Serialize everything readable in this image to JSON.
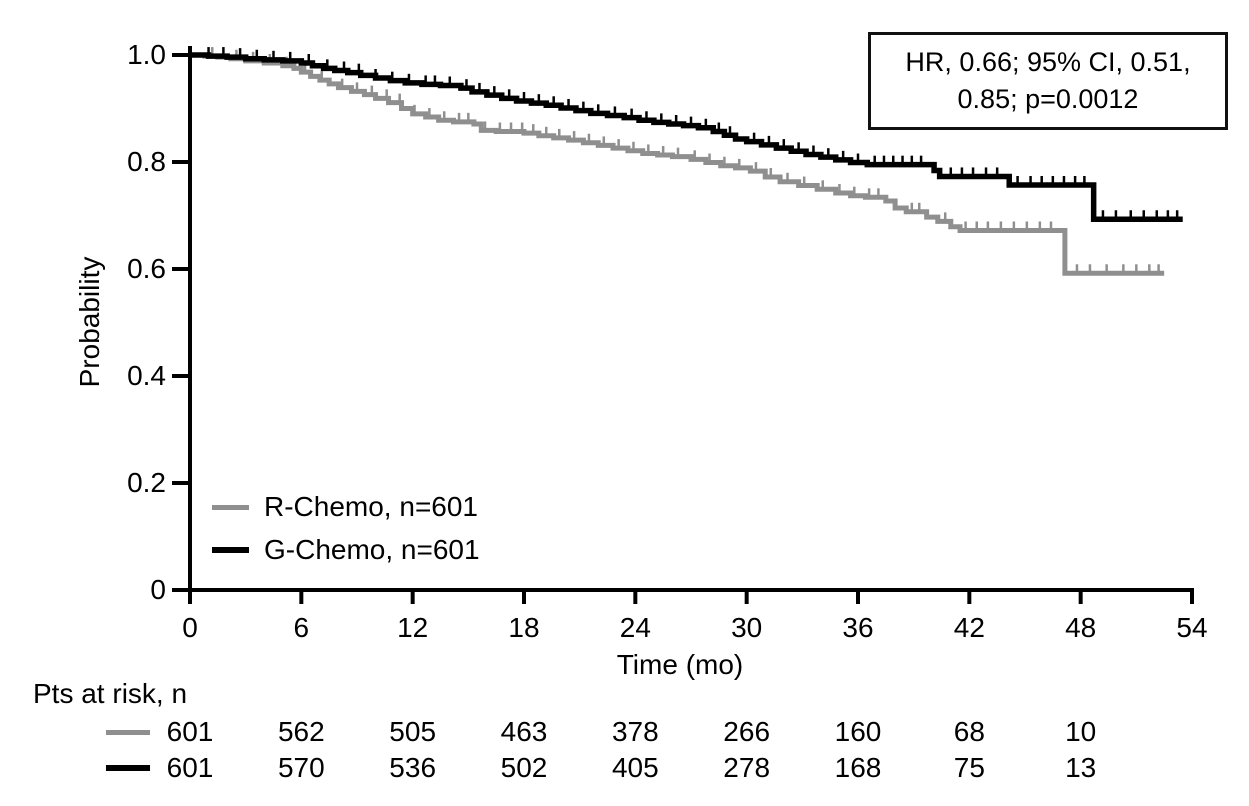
{
  "figure": {
    "background": "#ffffff",
    "text_color": "#000000"
  },
  "chart_data": {
    "type": "line",
    "subtype": "kaplan-meier-step",
    "title": "",
    "xlabel": "Time (mo)",
    "ylabel": "Probability",
    "xlim": [
      0,
      54
    ],
    "ylim": [
      0,
      1.0
    ],
    "x_ticks": [
      0,
      6,
      12,
      18,
      24,
      30,
      36,
      42,
      48,
      54
    ],
    "y_ticks": [
      0,
      0.2,
      0.4,
      0.6,
      0.8,
      1.0
    ],
    "y_tick_labels": [
      "0",
      "0.2",
      "0.4",
      "0.6",
      "0.8",
      "1.0"
    ],
    "grid": false,
    "legend_position": "inside-lower-left",
    "annotation": {
      "text": "HR, 0.66; 95% CI, 0.51, 0.85; p=0.0012"
    },
    "series": [
      {
        "name": "R-Chemo, n=601",
        "color": "#8f8f8f",
        "stroke_width": 5,
        "points": [
          [
            0,
            1.0
          ],
          [
            0.8,
            0.998
          ],
          [
            1.5,
            0.996
          ],
          [
            2.2,
            0.993
          ],
          [
            3,
            0.989
          ],
          [
            4,
            0.985
          ],
          [
            5,
            0.98
          ],
          [
            5.6,
            0.975
          ],
          [
            6,
            0.968
          ],
          [
            6.5,
            0.96
          ],
          [
            7,
            0.953
          ],
          [
            7.5,
            0.946
          ],
          [
            8,
            0.939
          ],
          [
            8.7,
            0.932
          ],
          [
            9.4,
            0.926
          ],
          [
            10,
            0.919
          ],
          [
            10.7,
            0.911
          ],
          [
            11.4,
            0.9
          ],
          [
            12,
            0.89
          ],
          [
            12.7,
            0.884
          ],
          [
            13.4,
            0.878
          ],
          [
            14.2,
            0.875
          ],
          [
            15.3,
            0.871
          ],
          [
            15.7,
            0.859
          ],
          [
            16.5,
            0.857
          ],
          [
            18,
            0.854
          ],
          [
            18.8,
            0.849
          ],
          [
            19.6,
            0.845
          ],
          [
            20.4,
            0.841
          ],
          [
            21.2,
            0.836
          ],
          [
            22,
            0.831
          ],
          [
            22.8,
            0.826
          ],
          [
            23.6,
            0.821
          ],
          [
            24.4,
            0.816
          ],
          [
            25.2,
            0.813
          ],
          [
            26,
            0.81
          ],
          [
            27,
            0.805
          ],
          [
            27.8,
            0.799
          ],
          [
            28.6,
            0.793
          ],
          [
            29.4,
            0.789
          ],
          [
            30.2,
            0.783
          ],
          [
            31,
            0.772
          ],
          [
            31.8,
            0.763
          ],
          [
            32.8,
            0.756
          ],
          [
            33.8,
            0.749
          ],
          [
            34.8,
            0.742
          ],
          [
            35.6,
            0.737
          ],
          [
            36.4,
            0.734
          ],
          [
            37.5,
            0.727
          ],
          [
            38,
            0.714
          ],
          [
            38.6,
            0.707
          ],
          [
            39.7,
            0.697
          ],
          [
            40.3,
            0.689
          ],
          [
            41,
            0.679
          ],
          [
            41.5,
            0.672
          ],
          [
            46.95,
            0.672
          ],
          [
            47.15,
            0.592
          ],
          [
            52.5,
            0.592
          ]
        ],
        "censor_times": [
          1.2,
          2.5,
          3.4,
          4.3,
          5.2,
          6.2,
          7.1,
          8.2,
          9,
          9.8,
          10.6,
          11.3,
          12.1,
          12.9,
          13.7,
          14.5,
          15,
          15.9,
          16.7,
          17.3,
          17.9,
          18.5,
          19.2,
          19.9,
          20.7,
          21.5,
          22.3,
          23.1,
          23.9,
          24.7,
          25.5,
          26.3,
          27.2,
          28,
          28.8,
          29.6,
          30.5,
          31.3,
          32.2,
          33.1,
          34.1,
          35,
          35.8,
          36.6,
          37.1,
          38.9,
          39.3,
          40.7,
          41.8,
          42.4,
          43,
          43.7,
          44.4,
          45.1,
          45.8,
          46.4,
          47.8,
          48.5,
          49.4,
          50.3,
          51,
          51.7,
          52.2
        ]
      },
      {
        "name": "G-Chemo, n=601",
        "color": "#000000",
        "stroke_width": 5.5,
        "points": [
          [
            0,
            1.0
          ],
          [
            1,
            0.998
          ],
          [
            2,
            0.996
          ],
          [
            3,
            0.993
          ],
          [
            4,
            0.991
          ],
          [
            5,
            0.989
          ],
          [
            6,
            0.985
          ],
          [
            6.6,
            0.98
          ],
          [
            7.2,
            0.975
          ],
          [
            7.8,
            0.971
          ],
          [
            8.5,
            0.967
          ],
          [
            9.2,
            0.962
          ],
          [
            10,
            0.957
          ],
          [
            10.8,
            0.952
          ],
          [
            11.6,
            0.948
          ],
          [
            12.5,
            0.945
          ],
          [
            13.5,
            0.943
          ],
          [
            14.6,
            0.938
          ],
          [
            15.2,
            0.931
          ],
          [
            16,
            0.925
          ],
          [
            16.8,
            0.919
          ],
          [
            17.6,
            0.914
          ],
          [
            18.4,
            0.91
          ],
          [
            19.2,
            0.906
          ],
          [
            20,
            0.901
          ],
          [
            20.8,
            0.896
          ],
          [
            21.6,
            0.891
          ],
          [
            22.5,
            0.887
          ],
          [
            23.4,
            0.883
          ],
          [
            24.2,
            0.878
          ],
          [
            25,
            0.874
          ],
          [
            25.8,
            0.871
          ],
          [
            26.6,
            0.868
          ],
          [
            27.4,
            0.864
          ],
          [
            28.2,
            0.857
          ],
          [
            28.8,
            0.85
          ],
          [
            29.4,
            0.843
          ],
          [
            30,
            0.838
          ],
          [
            30.8,
            0.832
          ],
          [
            31.6,
            0.826
          ],
          [
            32.4,
            0.82
          ],
          [
            33.2,
            0.814
          ],
          [
            34,
            0.809
          ],
          [
            34.8,
            0.804
          ],
          [
            35.6,
            0.799
          ],
          [
            36.5,
            0.795
          ],
          [
            39.9,
            0.795
          ],
          [
            40.1,
            0.784
          ],
          [
            40.4,
            0.773
          ],
          [
            44,
            0.773
          ],
          [
            44.15,
            0.757
          ],
          [
            48.55,
            0.757
          ],
          [
            48.7,
            0.693
          ],
          [
            53.5,
            0.693
          ]
        ],
        "censor_times": [
          1,
          1.8,
          2.7,
          3.6,
          4.5,
          5.4,
          6.4,
          7.4,
          8.3,
          9.1,
          10,
          10.9,
          11.8,
          12.7,
          13.2,
          14,
          14.9,
          15.6,
          16.4,
          17.2,
          18,
          18.8,
          19.6,
          20.4,
          21.2,
          22,
          22.9,
          23.8,
          24.6,
          25.4,
          26.2,
          27,
          27.8,
          28.5,
          29.1,
          30.4,
          31.2,
          32,
          32.8,
          33.6,
          34.4,
          35.2,
          36,
          36.9,
          37.4,
          37.9,
          38.4,
          38.9,
          39.4,
          41,
          41.6,
          42.2,
          42.9,
          43.5,
          44.6,
          45.3,
          45.9,
          46.5,
          47.1,
          47.7,
          48.2,
          49.2,
          49.9,
          50.7,
          51.4,
          52.1,
          52.7,
          53.2
        ]
      }
    ],
    "at_risk": {
      "label": "Pts at risk, n",
      "times": [
        0,
        6,
        12,
        18,
        24,
        30,
        36,
        42,
        48
      ],
      "rows": [
        {
          "series": "R-Chemo, n=601",
          "color": "#8f8f8f",
          "values": [
            601,
            562,
            505,
            463,
            378,
            266,
            160,
            68,
            10
          ]
        },
        {
          "series": "G-Chemo, n=601",
          "color": "#000000",
          "values": [
            601,
            570,
            536,
            502,
            405,
            278,
            168,
            75,
            13
          ]
        }
      ]
    }
  }
}
